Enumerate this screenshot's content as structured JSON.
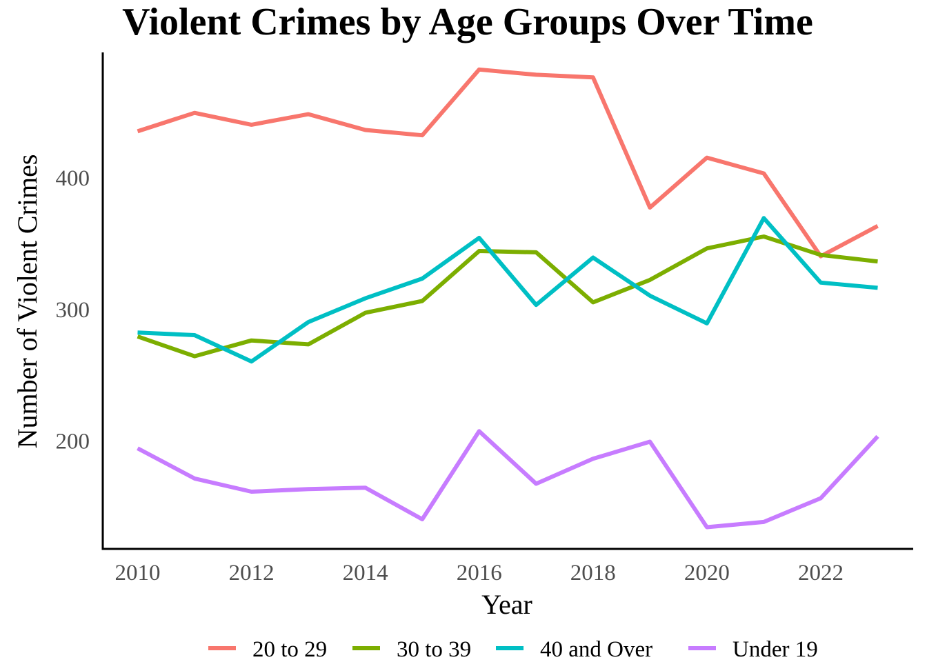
{
  "chart_data": {
    "type": "line",
    "title": "Violent Crimes by Age Groups Over Time",
    "xlabel": "Year",
    "ylabel": "Number of Violent Crimes",
    "x": [
      2010,
      2011,
      2012,
      2013,
      2014,
      2015,
      2016,
      2017,
      2018,
      2019,
      2020,
      2021,
      2022,
      2023
    ],
    "xticks": [
      "2010",
      "2012",
      "2014",
      "2016",
      "2018",
      "2020",
      "2022"
    ],
    "yticks": [
      "200",
      "300",
      "400"
    ],
    "xlim": [
      2009.4,
      2023.6
    ],
    "ylim": [
      118,
      495
    ],
    "grid": false,
    "legend_position": "bottom",
    "series": [
      {
        "name": "20 to 29",
        "color": "#F8766D",
        "values": [
          435,
          449,
          440,
          448,
          436,
          432,
          482,
          478,
          476,
          377,
          415,
          403,
          340,
          363
        ]
      },
      {
        "name": "30 to 39",
        "color": "#7CAE00",
        "values": [
          279,
          264,
          276,
          273,
          297,
          306,
          344,
          343,
          305,
          322,
          346,
          355,
          341,
          336
        ]
      },
      {
        "name": "40 and Over",
        "color": "#00BFC4",
        "values": [
          282,
          280,
          260,
          290,
          308,
          323,
          354,
          303,
          339,
          310,
          289,
          369,
          320,
          316
        ]
      },
      {
        "name": "Under 19",
        "color": "#C77CFF",
        "values": [
          194,
          171,
          161,
          163,
          164,
          140,
          207,
          167,
          186,
          199,
          134,
          138,
          156,
          203
        ]
      }
    ]
  }
}
